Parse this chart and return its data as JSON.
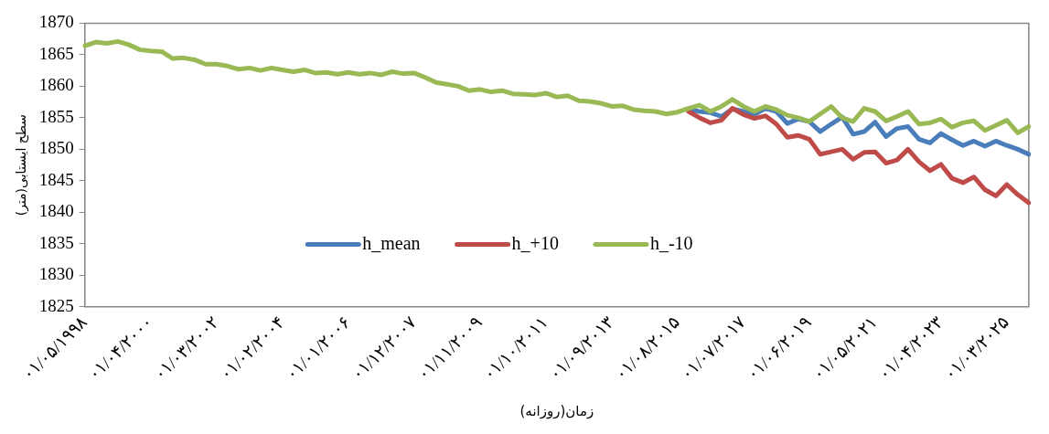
{
  "chart_data": {
    "type": "line",
    "xlabel": "زمان(روزانه)",
    "ylabel": "سطح ایستابی(متر)",
    "categories": [
      "۰۱/۰۵/۱۹۹۸",
      null,
      null,
      null,
      null,
      null,
      "۰۱/۰۴/۲۰۰۰",
      null,
      null,
      null,
      null,
      null,
      "۰۱/۰۳/۲۰۰۲",
      null,
      null,
      null,
      null,
      null,
      "۰۱/۰۲/۲۰۰۴",
      null,
      null,
      null,
      null,
      null,
      "۰۱/۰۱/۲۰۰۶",
      null,
      null,
      null,
      null,
      null,
      "۰۱/۱۲/۲۰۰۷",
      null,
      null,
      null,
      null,
      null,
      "۰۱/۱۱/۲۰۰۹",
      null,
      null,
      null,
      null,
      null,
      "۰۱/۱۰/۲۰۱۱",
      null,
      null,
      null,
      null,
      null,
      "۰۱/۰۹/۲۰۱۳",
      null,
      null,
      null,
      null,
      null,
      "۰۱/۰۸/۲۰۱۵",
      null,
      null,
      null,
      null,
      null,
      "۰۱/۰۷/۲۰۱۷",
      null,
      null,
      null,
      null,
      null,
      "۰۱/۰۶/۲۰۱۹",
      null,
      null,
      null,
      null,
      null,
      "۰۱/۰۵/۲۰۲۱",
      null,
      null,
      null,
      null,
      null,
      "۰۱/۰۴/۲۰۲۳",
      null,
      null,
      null,
      null,
      null,
      "۰۱/۰۳/۲۰۲۵",
      null,
      null
    ],
    "series": [
      {
        "name": "h_mean",
        "color": "#4a7ebb",
        "values": [
          null,
          null,
          null,
          null,
          null,
          null,
          null,
          null,
          null,
          null,
          null,
          null,
          null,
          null,
          null,
          null,
          null,
          null,
          null,
          null,
          null,
          null,
          null,
          null,
          null,
          null,
          null,
          null,
          null,
          null,
          null,
          null,
          null,
          null,
          null,
          null,
          null,
          null,
          null,
          null,
          null,
          null,
          null,
          null,
          null,
          null,
          null,
          null,
          null,
          null,
          null,
          null,
          null,
          null,
          null,
          1856.3,
          1856.0,
          1855.8,
          1855.2,
          1856.4,
          1856.0,
          1855.5,
          1856.5,
          1856.0,
          1854.1,
          1854.8,
          1854.4,
          1852.8,
          1854.0,
          1855.1,
          1852.4,
          1852.8,
          1854.3,
          1852.0,
          1853.3,
          1853.6,
          1851.6,
          1851.0,
          1852.5,
          1851.5,
          1850.6,
          1851.3,
          1850.5,
          1851.3,
          1850.6,
          1850.0,
          1849.2
        ]
      },
      {
        "name": "h_+10",
        "color": "#be4b48",
        "values": [
          null,
          null,
          null,
          null,
          null,
          null,
          null,
          null,
          null,
          null,
          null,
          null,
          null,
          null,
          null,
          null,
          null,
          null,
          null,
          null,
          null,
          null,
          null,
          null,
          null,
          null,
          null,
          null,
          null,
          null,
          null,
          null,
          null,
          null,
          null,
          null,
          null,
          null,
          null,
          null,
          null,
          null,
          null,
          null,
          null,
          null,
          null,
          null,
          null,
          null,
          null,
          null,
          null,
          null,
          null,
          1856.0,
          1855.0,
          1854.2,
          1854.6,
          1856.5,
          1855.5,
          1854.9,
          1855.3,
          1854.0,
          1851.9,
          1852.2,
          1851.6,
          1849.2,
          1849.6,
          1850.0,
          1848.4,
          1849.5,
          1849.6,
          1847.8,
          1848.3,
          1850.0,
          1848.0,
          1846.6,
          1847.6,
          1845.4,
          1844.7,
          1845.6,
          1843.6,
          1842.6,
          1844.4,
          1842.8,
          1841.5
        ]
      },
      {
        "name": "h_-10",
        "color": "#98b954",
        "values": [
          1866.4,
          1867.0,
          1866.8,
          1867.1,
          1866.6,
          1865.8,
          1865.6,
          1865.5,
          1864.4,
          1864.5,
          1864.2,
          1863.5,
          1863.5,
          1863.2,
          1862.7,
          1862.9,
          1862.5,
          1862.9,
          1862.6,
          1862.3,
          1862.6,
          1862.1,
          1862.2,
          1861.9,
          1862.2,
          1861.9,
          1862.1,
          1861.8,
          1862.3,
          1862.0,
          1862.1,
          1861.4,
          1860.6,
          1860.3,
          1860.0,
          1859.3,
          1859.5,
          1859.1,
          1859.3,
          1858.8,
          1858.7,
          1858.6,
          1858.9,
          1858.3,
          1858.5,
          1857.7,
          1857.6,
          1857.3,
          1856.8,
          1856.9,
          1856.3,
          1856.1,
          1856.0,
          1855.6,
          1855.9,
          1856.5,
          1857.0,
          1856.0,
          1856.8,
          1857.9,
          1856.8,
          1856.0,
          1856.8,
          1856.3,
          1855.4,
          1855.0,
          1854.4,
          1855.6,
          1856.8,
          1855.0,
          1854.4,
          1856.5,
          1856.0,
          1854.5,
          1855.2,
          1856.0,
          1854.0,
          1854.2,
          1854.8,
          1853.5,
          1854.2,
          1854.5,
          1853.0,
          1853.8,
          1854.6,
          1852.6,
          1853.6
        ]
      }
    ],
    "ylim": [
      1825,
      1870
    ],
    "yticks": [
      1825,
      1830,
      1835,
      1840,
      1845,
      1850,
      1855,
      1860,
      1865,
      1870
    ],
    "grid": false,
    "legend": "bottom"
  }
}
